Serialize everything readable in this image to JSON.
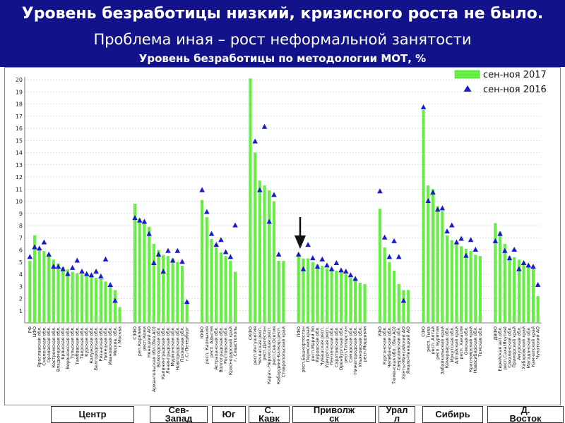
{
  "header": {
    "title": "Уровень безработицы низкий, кризисного роста не было.",
    "subtitle": "Проблема иная – рост неформальной занятости",
    "chart_caption": "Уровень безработицы по методологии МОТ, %"
  },
  "colors": {
    "header_bg": "#12128a",
    "bar": "#66ee44",
    "marker": "#1a1acc"
  },
  "regions": [
    {
      "label": "Центр"
    },
    {
      "label": "Сев-\nЗапад"
    },
    {
      "label": "Юг"
    },
    {
      "label": "С.\nКавк"
    },
    {
      "label": "Приволж\nск"
    },
    {
      "label": "Урал\nл"
    },
    {
      "label": "Сибирь"
    },
    {
      "label": "Д.\nВосток"
    }
  ],
  "chart_data": {
    "type": "bar",
    "ylim": [
      0,
      20
    ],
    "yticks": [
      1,
      2,
      3,
      4,
      5,
      6,
      7,
      8,
      9,
      10,
      11,
      12,
      13,
      14,
      15,
      16,
      17,
      18,
      19,
      20
    ],
    "grid": true,
    "legend_position": "top-right",
    "series": [
      {
        "name": "сен-ноя 2017",
        "style": "bar"
      },
      {
        "name": "сен-ноя 2016",
        "style": "triangle-marker"
      }
    ],
    "groups": [
      {
        "region": "Центр",
        "categories": [
          {
            "name": "РФ",
            "v2017": 5.1,
            "v2016": 5.4
          },
          {
            "name": "ЦФО",
            "v2017": 7.2,
            "v2016": 6.2
          },
          {
            "name": "Ярославская обл.",
            "v2017": 6.1,
            "v2016": 6.1
          },
          {
            "name": "Смоленская обл.",
            "v2017": 5.9,
            "v2016": 6.6
          },
          {
            "name": "Орловская обл.",
            "v2017": 5.6,
            "v2016": 5.6
          },
          {
            "name": "Костромская обл.",
            "v2017": 5.2,
            "v2016": 4.6
          },
          {
            "name": "Владимирская обл.",
            "v2017": 4.9,
            "v2016": 4.6
          },
          {
            "name": "Брянская обл.",
            "v2017": 4.6,
            "v2016": 4.4
          },
          {
            "name": "Воронежская обл.",
            "v2017": 4.4,
            "v2016": 4.0
          },
          {
            "name": "Тульская обл.",
            "v2017": 4.2,
            "v2016": 4.5
          },
          {
            "name": "Тамбовская обл.",
            "v2017": 4.1,
            "v2016": 5.1
          },
          {
            "name": "Тверская обл.",
            "v2017": 4.0,
            "v2016": 4.2
          },
          {
            "name": "Курская обл.",
            "v2017": 3.9,
            "v2016": 4.0
          },
          {
            "name": "Калужская обл.",
            "v2017": 3.8,
            "v2016": 3.9
          },
          {
            "name": "Белгородская обл.",
            "v2017": 3.7,
            "v2016": 4.2
          },
          {
            "name": "Рязанская обл.",
            "v2017": 3.6,
            "v2016": 3.8
          },
          {
            "name": "Липецкая обл.",
            "v2017": 3.4,
            "v2016": 5.2
          },
          {
            "name": "Ивановская обл.",
            "v2017": 3.1,
            "v2016": 3.1
          },
          {
            "name": "Москов. обл.",
            "v2017": 2.7,
            "v2016": 1.8
          },
          {
            "name": "г.Москва",
            "v2017": 1.3,
            "v2016": null
          }
        ]
      },
      {
        "region": "Сев-Запад",
        "categories": [
          {
            "name": "СЗФО",
            "v2017": 9.8,
            "v2016": 8.6
          },
          {
            "name": "реп.Карелия",
            "v2017": 8.6,
            "v2016": 8.4
          },
          {
            "name": "респ.Коми",
            "v2017": 8.2,
            "v2016": 8.3
          },
          {
            "name": "Ненецкий АО",
            "v2017": 7.9,
            "v2016": 7.3
          },
          {
            "name": "Архангельская обл.(без АО)",
            "v2017": 6.5,
            "v2016": 4.9
          },
          {
            "name": "Вологодская обл.",
            "v2017": 6.0,
            "v2016": 5.6
          },
          {
            "name": "Калининградская обл.",
            "v2017": 5.6,
            "v2016": 4.2
          },
          {
            "name": "Ленинградская обл.",
            "v2017": 5.5,
            "v2016": 5.9
          },
          {
            "name": "Мурманская обл.",
            "v2017": 5.3,
            "v2016": 5.1
          },
          {
            "name": "Новгородская обл.",
            "v2017": 5.0,
            "v2016": 5.9
          },
          {
            "name": "Псковская обл.",
            "v2017": 4.7,
            "v2016": 5.0
          },
          {
            "name": "г.С.-Петербург",
            "v2017": 1.6,
            "v2016": 1.7
          }
        ]
      },
      {
        "region": "Юг",
        "categories": [
          {
            "name": "ЮФО",
            "v2017": 10.1,
            "v2016": 10.9
          },
          {
            "name": "респ. Калмыкия",
            "v2017": 8.7,
            "v2016": 9.1
          },
          {
            "name": "респ. Адыгея",
            "v2017": 6.9,
            "v2016": 7.3
          },
          {
            "name": "Астраханская обл.",
            "v2017": 6.2,
            "v2016": 6.4
          },
          {
            "name": "Волгоградская обл.",
            "v2017": 5.8,
            "v2016": 6.8
          },
          {
            "name": "Ростовская обл.",
            "v2017": 5.5,
            "v2016": 5.8
          },
          {
            "name": "Краснодарский край",
            "v2017": 5.1,
            "v2016": 5.4
          },
          {
            "name": "г. Севастополь",
            "v2017": 4.2,
            "v2016": 8.0
          }
        ]
      },
      {
        "region": "С.Кавк",
        "categories": [
          {
            "name": "СКФО",
            "v2017": 20.1,
            "v2016": null
          },
          {
            "name": "респ.Ингушетия",
            "v2017": 14.0,
            "v2016": 14.9
          },
          {
            "name": "Чеченская респ.",
            "v2017": 11.7,
            "v2016": 10.9
          },
          {
            "name": "респ.Дагестан",
            "v2017": 11.3,
            "v2016": 16.1
          },
          {
            "name": "Карач.-Черкесская респ.",
            "v2017": 10.9,
            "v2016": 8.3
          },
          {
            "name": "респ.Сев.Осетия",
            "v2017": 10.0,
            "v2016": 10.5
          },
          {
            "name": "Кабардино-Балкар.респ.",
            "v2017": 5.1,
            "v2016": 5.6
          },
          {
            "name": "Ставропольский край",
            "v2017": 5.1,
            "v2016": null
          }
        ]
      },
      {
        "region": "Приволжск",
        "categories": [
          {
            "name": "ПФО",
            "v2017": 5.5,
            "v2016": 5.6
          },
          {
            "name": "респ.Башкортостан",
            "v2017": 5.3,
            "v2016": 4.4
          },
          {
            "name": "Пермский край",
            "v2017": 5.3,
            "v2016": 6.4
          },
          {
            "name": "респ.Марий Эл",
            "v2017": 5.0,
            "v2016": 5.3
          },
          {
            "name": "Кировская обл.",
            "v2017": 4.8,
            "v2016": 4.6
          },
          {
            "name": "Чувашская респ.",
            "v2017": 4.7,
            "v2016": 5.2
          },
          {
            "name": "Удмуртская респ.",
            "v2017": 4.5,
            "v2016": 4.7
          },
          {
            "name": "Пензенская обл.",
            "v2017": 4.4,
            "v2016": 4.4
          },
          {
            "name": "Саратовская обл.",
            "v2017": 4.3,
            "v2016": 4.9
          },
          {
            "name": "Оренбургская обл.",
            "v2017": 4.2,
            "v2016": 4.3
          },
          {
            "name": "респ.Татарстан",
            "v2017": 4.0,
            "v2016": 4.2
          },
          {
            "name": "Самарская обл.",
            "v2017": 3.7,
            "v2016": 3.9
          },
          {
            "name": "Нижегородская обл.",
            "v2017": 3.5,
            "v2016": 3.6
          },
          {
            "name": "Ульяновская обл.",
            "v2017": 3.3,
            "v2016": null
          },
          {
            "name": "респ.Мордовия",
            "v2017": 3.2,
            "v2016": null
          }
        ]
      },
      {
        "region": "Урал",
        "categories": [
          {
            "name": "УФО",
            "v2017": 9.4,
            "v2016": 10.8
          },
          {
            "name": "Курганская обл.",
            "v2017": 6.2,
            "v2016": 7.0
          },
          {
            "name": "Челябинская обл.",
            "v2017": 5.0,
            "v2016": 5.4
          },
          {
            "name": "Тюменская обл. (без АО)",
            "v2017": 4.3,
            "v2016": 6.7
          },
          {
            "name": "Свердловская обл.",
            "v2017": 3.2,
            "v2016": 5.4
          },
          {
            "name": "Ханты-Мансийский АО",
            "v2017": 2.7,
            "v2016": 1.8
          },
          {
            "name": "Ямало-Ненецкий АО",
            "v2017": 2.7,
            "v2016": null
          }
        ]
      },
      {
        "region": "Сибирь",
        "categories": [
          {
            "name": "СФО",
            "v2017": 17.5,
            "v2016": 17.7
          },
          {
            "name": "респ. Тыва",
            "v2017": 11.3,
            "v2016": 10.0
          },
          {
            "name": "респ. Алтай",
            "v2017": 11.0,
            "v2016": 10.7
          },
          {
            "name": "респ. Бурятия",
            "v2017": 9.6,
            "v2016": 9.3
          },
          {
            "name": "Забайкальский край",
            "v2017": 9.2,
            "v2016": 9.4
          },
          {
            "name": "Кемеровская обл.",
            "v2017": 7.2,
            "v2016": 7.5
          },
          {
            "name": "Иркутская обл.",
            "v2017": 6.8,
            "v2016": 8.0
          },
          {
            "name": "Алтайский край",
            "v2017": 6.5,
            "v2016": 6.6
          },
          {
            "name": "респ. Хакасия",
            "v2017": 6.3,
            "v2016": 6.9
          },
          {
            "name": "Омская обл.",
            "v2017": 6.1,
            "v2016": 5.5
          },
          {
            "name": "Красноярский край",
            "v2017": 5.9,
            "v2016": 6.8
          },
          {
            "name": "Новосибирская обл.",
            "v2017": 5.6,
            "v2016": 6.0
          },
          {
            "name": "Томская обл.",
            "v2017": 5.5,
            "v2016": null
          }
        ]
      },
      {
        "region": "Д.Восток",
        "categories": [
          {
            "name": "ДВФО",
            "v2017": 8.2,
            "v2016": 6.7
          },
          {
            "name": "Еврейская авт.обл.",
            "v2017": 7.5,
            "v2016": 7.3
          },
          {
            "name": "респ.Саха(Якутия)",
            "v2017": 6.5,
            "v2016": 5.9
          },
          {
            "name": "Сахалинская обл.",
            "v2017": 5.5,
            "v2016": 5.3
          },
          {
            "name": "Приморский край",
            "v2017": 5.4,
            "v2016": 6.0
          },
          {
            "name": "Амурская обл.",
            "v2017": 5.2,
            "v2016": 4.4
          },
          {
            "name": "Хабаровский край",
            "v2017": 4.8,
            "v2016": 4.9
          },
          {
            "name": "Магаданская обл.",
            "v2017": 4.6,
            "v2016": 4.7
          },
          {
            "name": "Камчатский край",
            "v2017": 4.6,
            "v2016": 4.6
          },
          {
            "name": "Чукотский АО",
            "v2017": 2.2,
            "v2016": 3.1
          }
        ]
      }
    ]
  }
}
